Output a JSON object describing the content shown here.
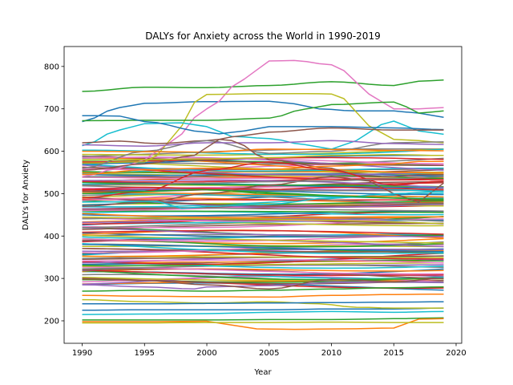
{
  "chart_data": {
    "type": "line",
    "title": "DALYs for Anxiety across the World in 1990-2019",
    "xlabel": "Year",
    "ylabel": "DALYs for Anxiety",
    "xlim": [
      1988.55,
      2020.45
    ],
    "ylim": [
      147,
      847
    ],
    "x_ticks": [
      1990,
      1995,
      2000,
      2005,
      2010,
      2015,
      2020
    ],
    "y_ticks": [
      200,
      300,
      400,
      500,
      600,
      700,
      800
    ],
    "grid": false,
    "legend": "none",
    "x": [
      1990,
      1991,
      1992,
      1993,
      1994,
      1995,
      1996,
      1997,
      1998,
      1999,
      2000,
      2001,
      2002,
      2003,
      2004,
      2005,
      2006,
      2007,
      2008,
      2009,
      2010,
      2011,
      2012,
      2013,
      2014,
      2015,
      2016,
      2017,
      2018,
      2019
    ],
    "colors": [
      "#1f77b4",
      "#ff7f0e",
      "#2ca02c",
      "#d62728",
      "#9467bd",
      "#8c564b",
      "#e377c2",
      "#7f7f7f",
      "#bcbd22",
      "#17becf"
    ],
    "series_keyframes": [
      {
        "keys": [
          [
            1990,
            741
          ],
          [
            1995,
            751
          ],
          [
            2000,
            750
          ],
          [
            2005,
            755
          ],
          [
            2010,
            764
          ],
          [
            2015,
            755
          ],
          [
            2017,
            765
          ],
          [
            2019,
            768
          ]
        ],
        "color": "#2ca02c"
      },
      {
        "keys": [
          [
            1990,
            670
          ],
          [
            1993,
            703
          ],
          [
            1995,
            713
          ],
          [
            2000,
            717
          ],
          [
            2005,
            718
          ],
          [
            2007,
            712
          ],
          [
            2009,
            700
          ],
          [
            2012,
            695
          ],
          [
            2015,
            695
          ],
          [
            2017,
            690
          ],
          [
            2019,
            680
          ]
        ],
        "color": "#1f77b4"
      },
      {
        "keys": [
          [
            1990,
            540
          ],
          [
            1993,
            560
          ],
          [
            1995,
            580
          ],
          [
            1997,
            620
          ],
          [
            2000,
            700
          ],
          [
            2003,
            770
          ],
          [
            2005,
            813
          ],
          [
            2007,
            814
          ],
          [
            2010,
            804
          ],
          [
            2011,
            790
          ],
          [
            2013,
            735
          ],
          [
            2015,
            700
          ],
          [
            2017,
            700
          ],
          [
            2019,
            703
          ]
        ],
        "color": "#e377c2"
      },
      {
        "keys": [
          [
            1990,
            572
          ],
          [
            1995,
            575
          ],
          [
            1996,
            590
          ],
          [
            1998,
            660
          ],
          [
            1999,
            715
          ],
          [
            2000,
            734
          ],
          [
            2005,
            736
          ],
          [
            2008,
            736
          ],
          [
            2010,
            735
          ],
          [
            2011,
            724
          ],
          [
            2013,
            660
          ],
          [
            2015,
            628
          ],
          [
            2017,
            625
          ],
          [
            2019,
            620
          ]
        ],
        "color": "#bcbd22"
      },
      {
        "keys": [
          [
            1990,
            672
          ],
          [
            1995,
            673
          ],
          [
            2000,
            673
          ],
          [
            2005,
            678
          ],
          [
            2008,
            700
          ],
          [
            2010,
            710
          ],
          [
            2015,
            716
          ],
          [
            2016,
            705
          ],
          [
            2017,
            690
          ],
          [
            2019,
            695
          ]
        ],
        "color": "#2ca02c"
      },
      {
        "keys": [
          [
            1990,
            613
          ],
          [
            1993,
            650
          ],
          [
            1995,
            665
          ],
          [
            1998,
            667
          ],
          [
            2000,
            658
          ],
          [
            2002,
            635
          ],
          [
            2005,
            630
          ],
          [
            2008,
            615
          ],
          [
            2010,
            605
          ],
          [
            2012,
            625
          ],
          [
            2014,
            663
          ],
          [
            2015,
            671
          ],
          [
            2017,
            648
          ],
          [
            2019,
            640
          ]
        ],
        "color": "#17becf"
      },
      {
        "keys": [
          [
            1990,
            684
          ],
          [
            1993,
            683
          ],
          [
            1995,
            670
          ],
          [
            2000,
            645
          ],
          [
            2001,
            641
          ],
          [
            2003,
            648
          ],
          [
            2005,
            658
          ],
          [
            2010,
            658
          ],
          [
            2015,
            655
          ],
          [
            2019,
            651
          ]
        ],
        "color": "#1f77b4"
      },
      {
        "keys": [
          [
            1990,
            620
          ],
          [
            1993,
            624
          ],
          [
            1996,
            618
          ],
          [
            2000,
            625
          ],
          [
            2003,
            637
          ],
          [
            2005,
            645
          ],
          [
            2010,
            655
          ],
          [
            2015,
            650
          ],
          [
            2019,
            650
          ]
        ],
        "color": "#8c564b"
      },
      {
        "keys": [
          [
            1990,
            560
          ],
          [
            1995,
            600
          ],
          [
            2000,
            625
          ],
          [
            2005,
            595
          ],
          [
            2010,
            600
          ],
          [
            2015,
            620
          ],
          [
            2019,
            622
          ]
        ],
        "color": "#7f7f7f"
      },
      {
        "keys": [
          [
            1990,
            600
          ],
          [
            1995,
            599
          ],
          [
            2000,
            598
          ],
          [
            2005,
            605
          ],
          [
            2010,
            604
          ],
          [
            2015,
            602
          ],
          [
            2019,
            601
          ]
        ],
        "color": "#ff7f0e"
      },
      {
        "keys": [
          [
            1990,
            615
          ],
          [
            1995,
            612
          ],
          [
            2000,
            620
          ],
          [
            2005,
            620
          ],
          [
            2010,
            625
          ],
          [
            2015,
            618
          ],
          [
            2019,
            616
          ]
        ],
        "color": "#9467bd"
      },
      {
        "keys": [
          [
            1990,
            555
          ],
          [
            1995,
            570
          ],
          [
            1999,
            590
          ],
          [
            2001,
            628
          ],
          [
            2002,
            625
          ],
          [
            2005,
            580
          ],
          [
            2010,
            560
          ],
          [
            2012,
            543
          ],
          [
            2015,
            540
          ],
          [
            2017,
            545
          ],
          [
            2019,
            545
          ]
        ],
        "color": "#8c564b"
      },
      {
        "keys": [
          [
            1990,
            545
          ],
          [
            1995,
            556
          ],
          [
            2000,
            560
          ],
          [
            2005,
            557
          ],
          [
            2010,
            565
          ],
          [
            2015,
            570
          ],
          [
            2017,
            576
          ],
          [
            2019,
            576
          ]
        ],
        "color": "#ff7f0e"
      },
      {
        "keys": [
          [
            1990,
            580
          ],
          [
            1995,
            580
          ],
          [
            2000,
            582
          ],
          [
            2005,
            585
          ],
          [
            2010,
            590
          ],
          [
            2015,
            592
          ],
          [
            2019,
            590
          ]
        ],
        "color": "#bcbd22"
      },
      {
        "keys": [
          [
            1990,
            490
          ],
          [
            1995,
            505
          ],
          [
            2000,
            555
          ],
          [
            2005,
            575
          ],
          [
            2010,
            555
          ],
          [
            2015,
            520
          ],
          [
            2019,
            530
          ]
        ],
        "color": "#d62728"
      },
      {
        "keys": [
          [
            1990,
            470
          ],
          [
            1995,
            480
          ],
          [
            2000,
            500
          ],
          [
            2005,
            520
          ],
          [
            2010,
            540
          ],
          [
            2013,
            530
          ],
          [
            2015,
            500
          ],
          [
            2017,
            480
          ],
          [
            2019,
            525
          ]
        ],
        "color": "#8c564b"
      },
      {
        "keys": [
          [
            1990,
            480
          ],
          [
            1996,
            482
          ],
          [
            1998,
            465
          ],
          [
            2000,
            470
          ],
          [
            2005,
            475
          ],
          [
            2010,
            490
          ],
          [
            2015,
            500
          ],
          [
            2019,
            505
          ]
        ],
        "color": "#17becf"
      },
      {
        "keys": [
          [
            1990,
            500
          ],
          [
            1995,
            505
          ],
          [
            2000,
            510
          ],
          [
            2005,
            500
          ],
          [
            2010,
            495
          ],
          [
            2015,
            490
          ],
          [
            2019,
            485
          ]
        ],
        "color": "#2ca02c"
      },
      {
        "keys": [
          [
            1990,
            520
          ],
          [
            1995,
            522
          ],
          [
            2000,
            525
          ],
          [
            2005,
            528
          ],
          [
            2010,
            530
          ],
          [
            2015,
            535
          ],
          [
            2019,
            540
          ]
        ],
        "color": "#7f7f7f"
      },
      {
        "keys": [
          [
            1990,
            510
          ],
          [
            1995,
            515
          ],
          [
            2000,
            512
          ],
          [
            2005,
            510
          ],
          [
            2010,
            515
          ],
          [
            2015,
            512
          ],
          [
            2019,
            510
          ]
        ],
        "color": "#d62728"
      },
      {
        "keys": [
          [
            1990,
            225
          ],
          [
            1995,
            226
          ],
          [
            2000,
            226
          ],
          [
            2005,
            226
          ],
          [
            2010,
            228
          ],
          [
            2015,
            228
          ],
          [
            2019,
            230
          ]
        ],
        "color": "#1f77b4"
      },
      {
        "keys": [
          [
            1990,
            215
          ],
          [
            1995,
            216
          ],
          [
            2000,
            217
          ],
          [
            2005,
            220
          ],
          [
            2010,
            222
          ],
          [
            2015,
            220
          ],
          [
            2019,
            222
          ]
        ],
        "color": "#17becf"
      },
      {
        "keys": [
          [
            1990,
            202
          ],
          [
            1995,
            202
          ],
          [
            2000,
            202
          ],
          [
            2005,
            203
          ],
          [
            2010,
            203
          ],
          [
            2015,
            205
          ],
          [
            2019,
            207
          ]
        ],
        "color": "#2ca02c"
      },
      {
        "keys": [
          [
            1990,
            198
          ],
          [
            1995,
            198
          ],
          [
            2000,
            199
          ],
          [
            2002,
            190
          ],
          [
            2004,
            181
          ],
          [
            2007,
            180
          ],
          [
            2011,
            181
          ],
          [
            2015,
            183
          ],
          [
            2017,
            204
          ],
          [
            2019,
            205
          ]
        ],
        "color": "#ff7f0e"
      },
      {
        "keys": [
          [
            1990,
            195
          ],
          [
            1995,
            195
          ],
          [
            2000,
            196
          ],
          [
            2005,
            196
          ],
          [
            2010,
            197
          ],
          [
            2015,
            196
          ],
          [
            2019,
            196
          ]
        ],
        "color": "#bcbd22"
      },
      {
        "keys": [
          [
            1990,
            250
          ],
          [
            1995,
            245
          ],
          [
            2000,
            242
          ],
          [
            2005,
            245
          ],
          [
            2009,
            240
          ],
          [
            2012,
            232
          ],
          [
            2015,
            230
          ],
          [
            2019,
            230
          ]
        ],
        "color": "#bcbd22"
      },
      {
        "keys": [
          [
            1990,
            260
          ],
          [
            1995,
            258
          ],
          [
            2000,
            257
          ],
          [
            2005,
            256
          ],
          [
            2010,
            260
          ],
          [
            2015,
            262
          ],
          [
            2019,
            263
          ]
        ],
        "color": "#ff7f0e"
      },
      {
        "keys": [
          [
            1990,
            240
          ],
          [
            1995,
            240
          ],
          [
            2000,
            241
          ],
          [
            2005,
            242
          ],
          [
            2010,
            243
          ],
          [
            2015,
            244
          ],
          [
            2019,
            245
          ]
        ],
        "color": "#1f77b4"
      },
      {
        "keys": [
          [
            1990,
            270
          ],
          [
            1995,
            272
          ],
          [
            2000,
            270
          ],
          [
            2005,
            272
          ],
          [
            2010,
            275
          ],
          [
            2015,
            278
          ],
          [
            2019,
            280
          ]
        ],
        "color": "#2ca02c"
      },
      {
        "keys": [
          [
            1990,
            285
          ],
          [
            1995,
            280
          ],
          [
            1999,
            275
          ],
          [
            2000,
            280
          ],
          [
            2005,
            283
          ],
          [
            2010,
            290
          ],
          [
            2015,
            292
          ],
          [
            2019,
            290
          ]
        ],
        "color": "#9467bd"
      },
      {
        "keys": [
          [
            1990,
            300
          ],
          [
            1995,
            295
          ],
          [
            2000,
            285
          ],
          [
            2005,
            275
          ],
          [
            2010,
            298
          ],
          [
            2015,
            292
          ],
          [
            2019,
            300
          ]
        ],
        "color": "#8c564b"
      }
    ],
    "band_lo": 285,
    "band_hi": 595,
    "band_count": 130
  }
}
